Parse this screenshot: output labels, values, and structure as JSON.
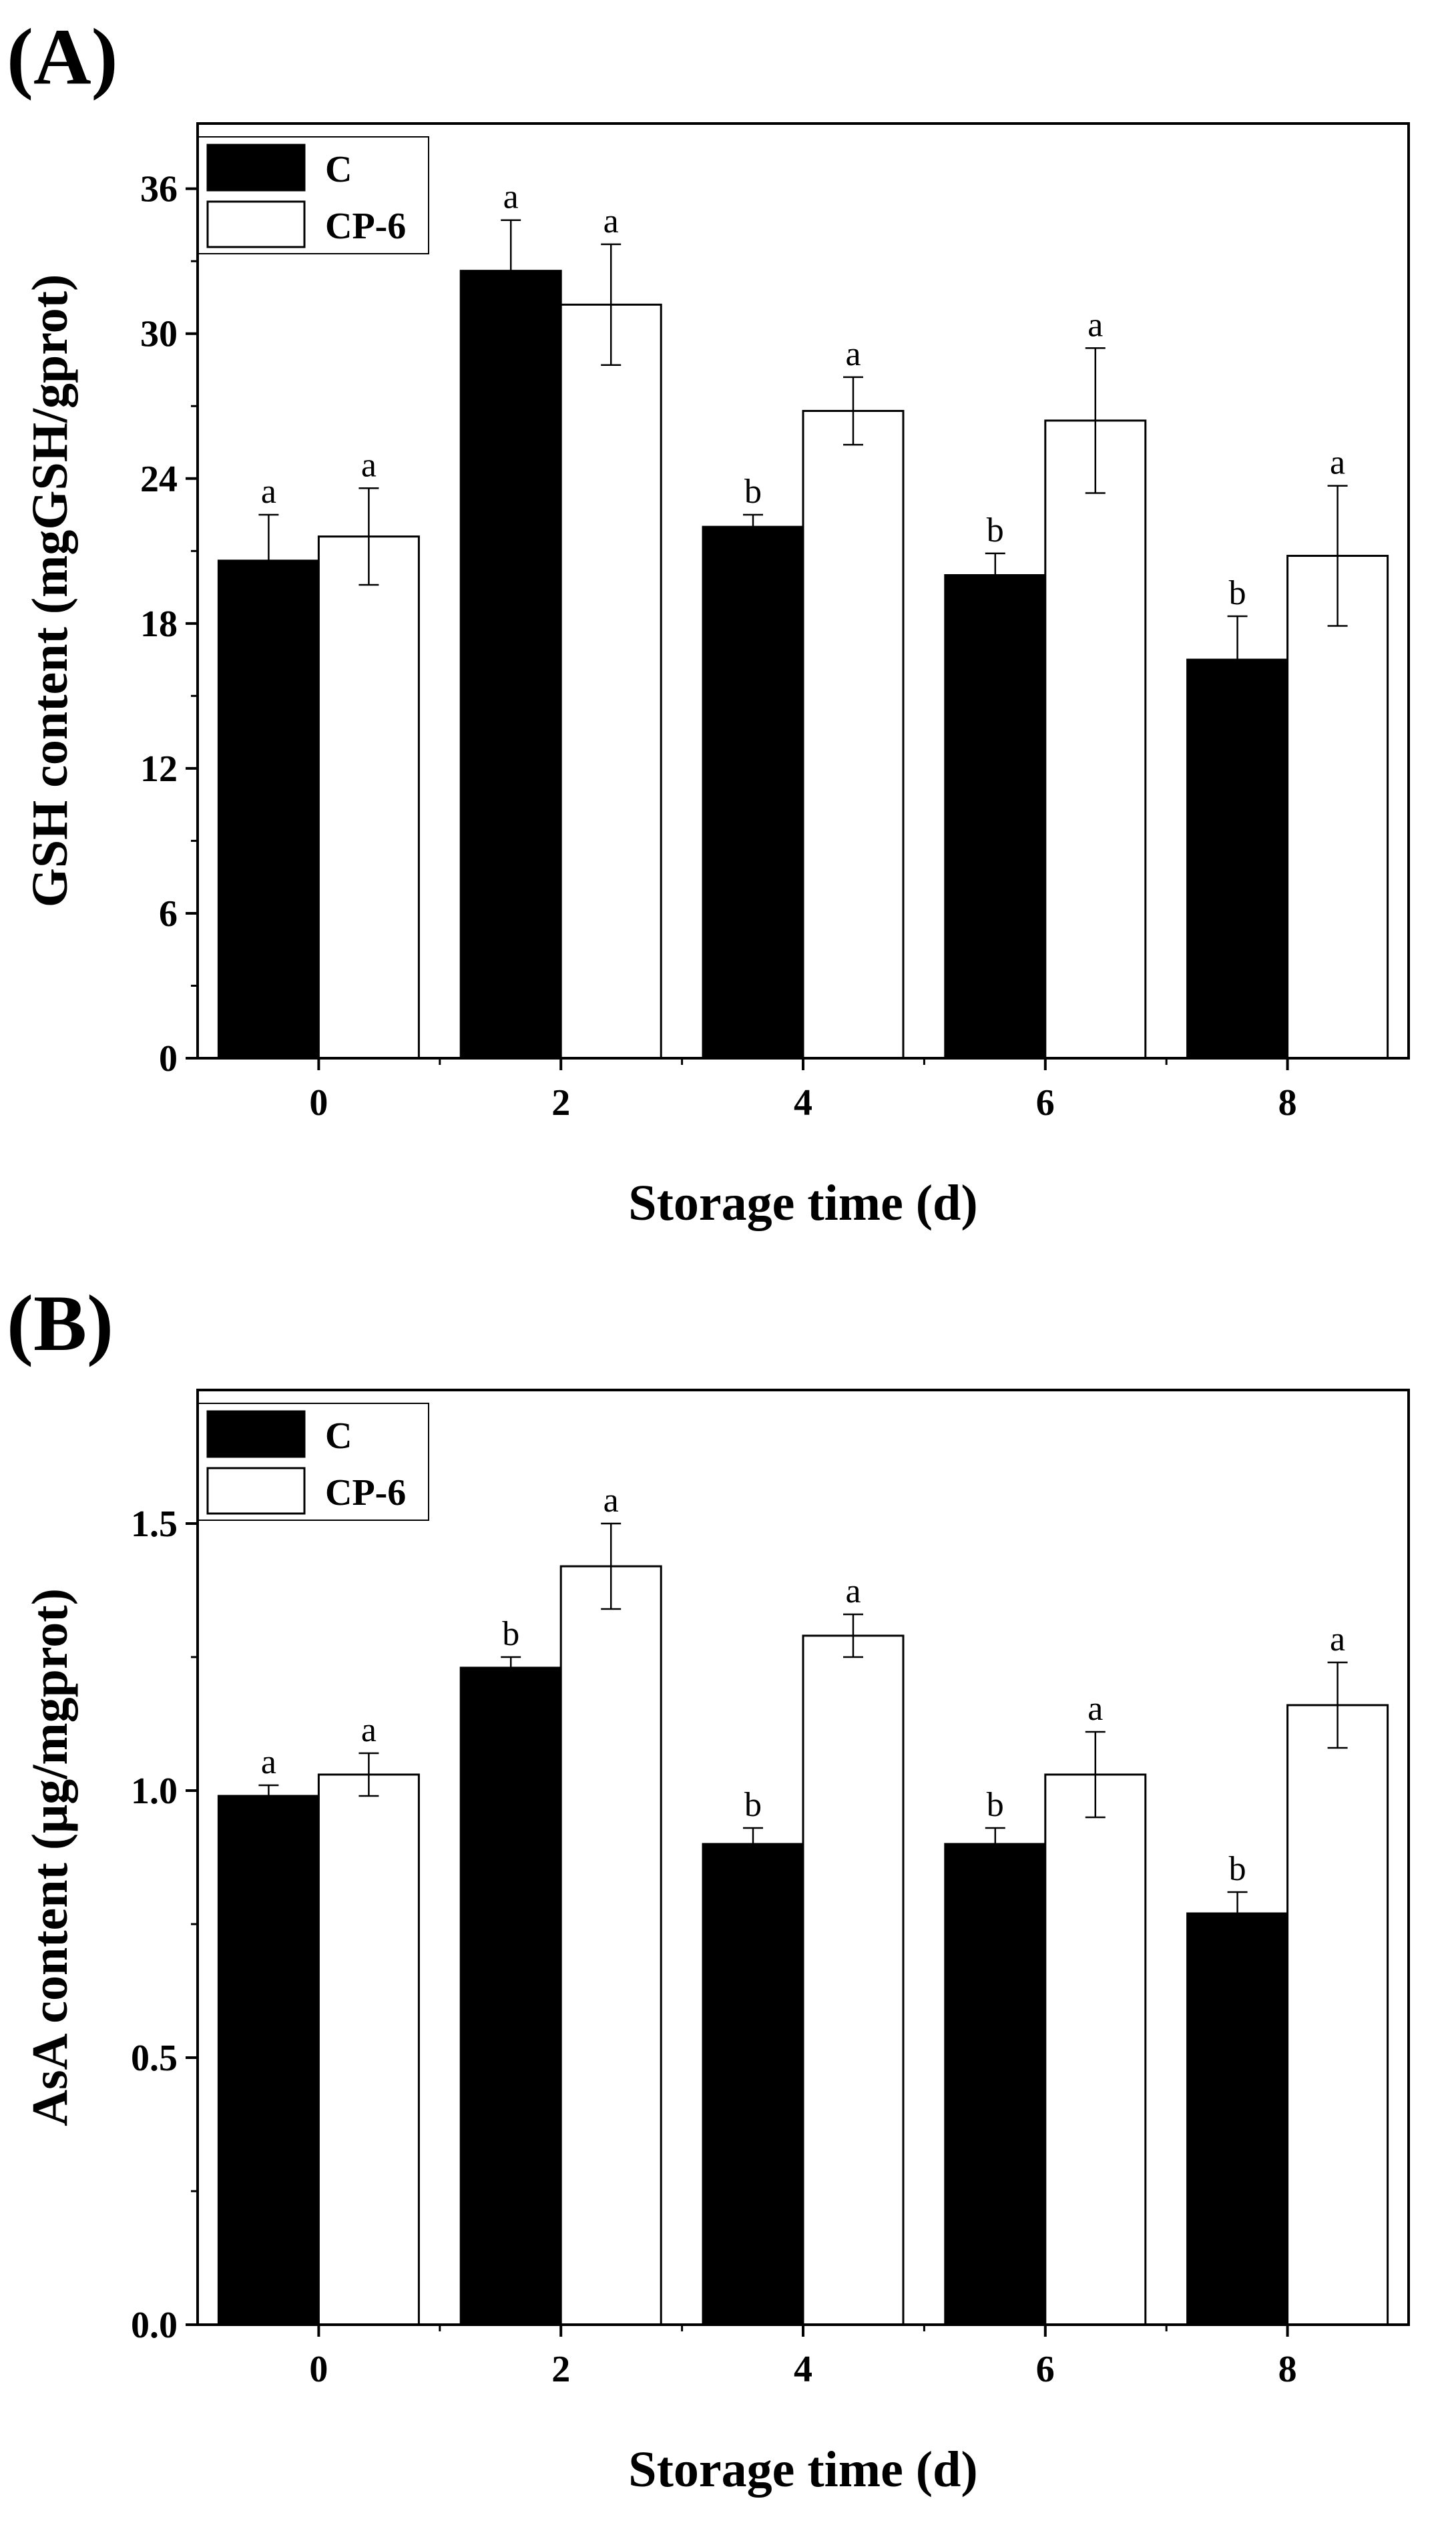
{
  "chart_data": [
    {
      "panel_label": "(A)",
      "type": "bar",
      "xlabel": "Storage time (d)",
      "ylabel": "GSH content (mgGSH/gprot)",
      "categories": [
        "0",
        "2",
        "4",
        "6",
        "8"
      ],
      "ylim": [
        0,
        38.7
      ],
      "yticks": [
        0,
        6,
        12,
        18,
        24,
        30,
        36
      ],
      "ytick_labels": [
        "0",
        "6",
        "12",
        "18",
        "24",
        "30",
        "36"
      ],
      "legend_position": "top-left",
      "series": [
        {
          "name": "C",
          "color": "#000000",
          "values": [
            20.6,
            32.6,
            22.0,
            20.0,
            16.5
          ],
          "errors": [
            1.9,
            2.1,
            0.5,
            0.9,
            1.8
          ],
          "labels": [
            "a",
            "a",
            "b",
            "b",
            "b"
          ]
        },
        {
          "name": "CP-6",
          "color": "#ffffff",
          "values": [
            21.6,
            31.2,
            26.8,
            26.4,
            20.8
          ],
          "errors": [
            2.0,
            2.5,
            1.4,
            3.0,
            2.9
          ],
          "labels": [
            "a",
            "a",
            "a",
            "a",
            "a"
          ]
        }
      ]
    },
    {
      "panel_label": "(B)",
      "type": "bar",
      "xlabel": "Storage time (d)",
      "ylabel": "AsA content (μg/mgprot)",
      "categories": [
        "0",
        "2",
        "4",
        "6",
        "8"
      ],
      "ylim": [
        0,
        1.75
      ],
      "yticks": [
        0,
        0.5,
        1.0,
        1.5
      ],
      "ytick_labels": [
        "0.0",
        "0.5",
        "1.0",
        "1.5"
      ],
      "legend_position": "top-left",
      "series": [
        {
          "name": "C",
          "color": "#000000",
          "values": [
            0.99,
            1.23,
            0.9,
            0.9,
            0.77
          ],
          "errors": [
            0.02,
            0.02,
            0.03,
            0.03,
            0.04
          ],
          "labels": [
            "a",
            "b",
            "b",
            "b",
            "b"
          ]
        },
        {
          "name": "CP-6",
          "color": "#ffffff",
          "values": [
            1.03,
            1.42,
            1.29,
            1.03,
            1.16
          ],
          "errors": [
            0.04,
            0.08,
            0.04,
            0.08,
            0.08
          ],
          "labels": [
            "a",
            "a",
            "a",
            "a",
            "a"
          ]
        }
      ]
    }
  ]
}
